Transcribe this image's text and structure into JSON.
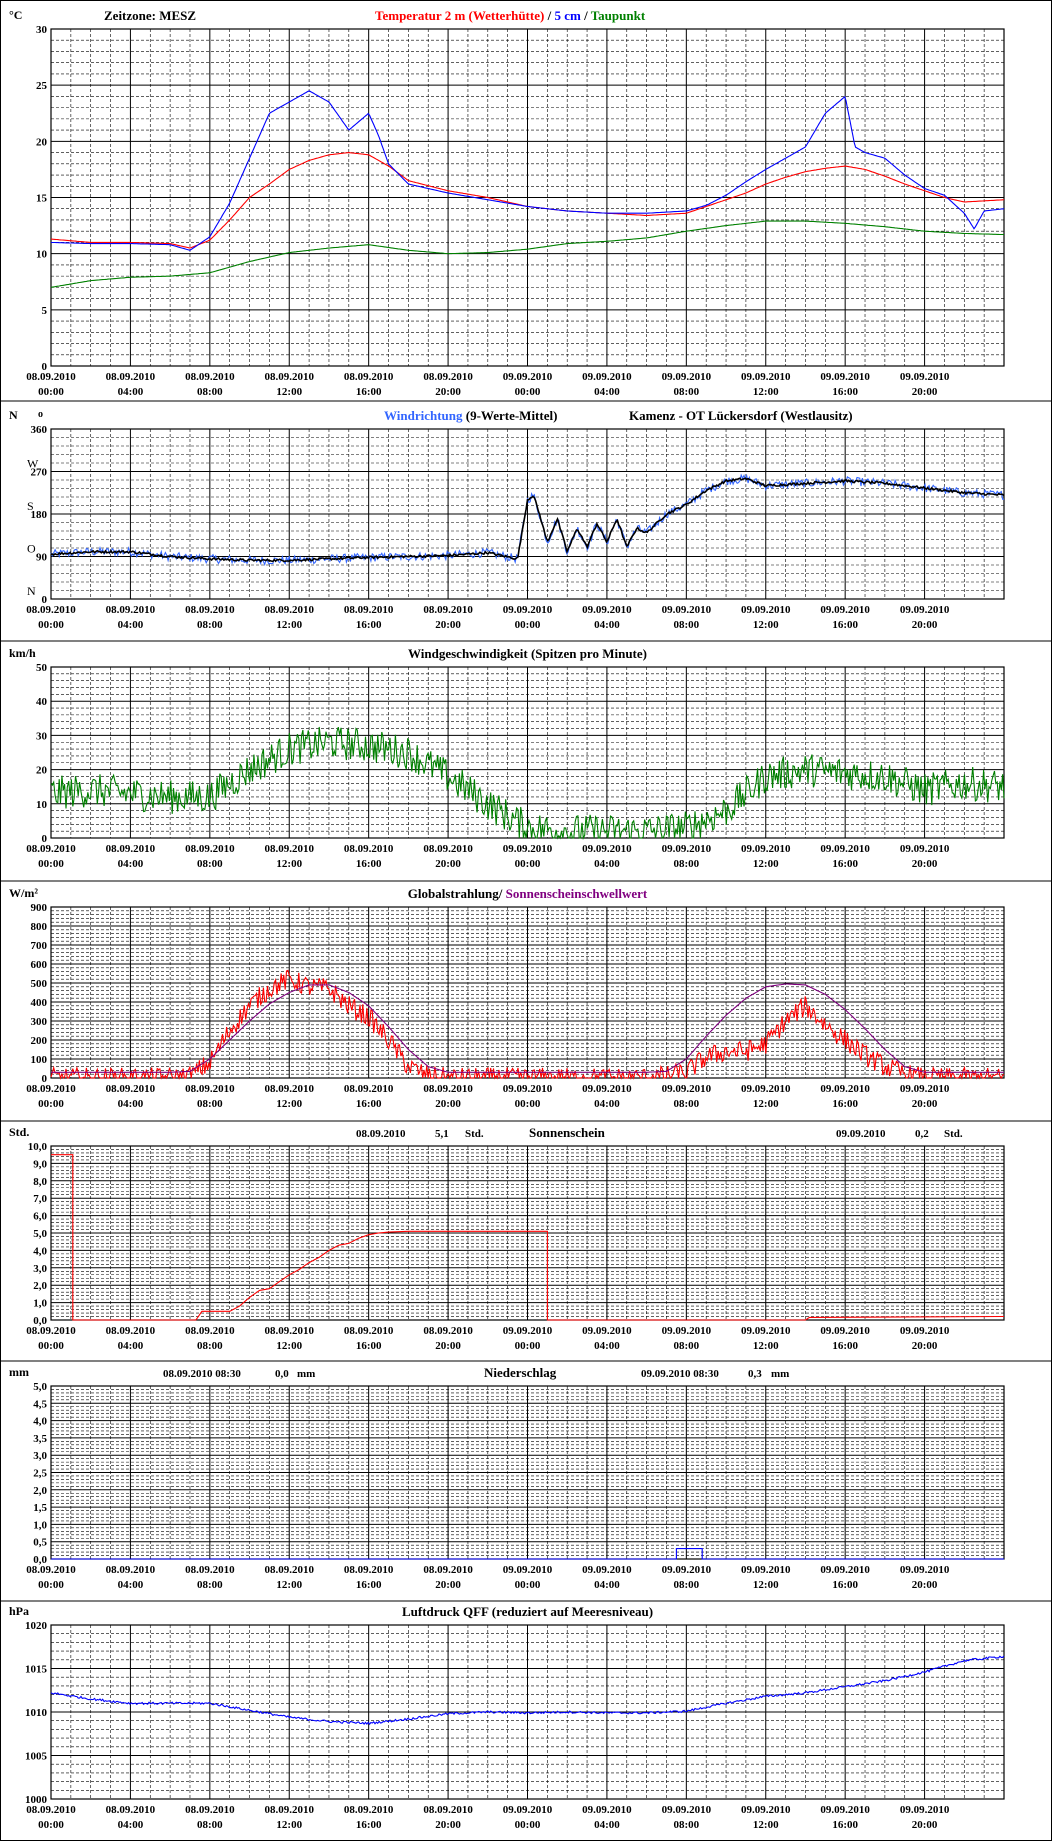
{
  "time_axis": {
    "labels": [
      [
        "08.09.2010",
        "00:00"
      ],
      [
        "08.09.2010",
        "04:00"
      ],
      [
        "08.09.2010",
        "08:00"
      ],
      [
        "08.09.2010",
        "12:00"
      ],
      [
        "08.09.2010",
        "16:00"
      ],
      [
        "08.09.2010",
        "20:00"
      ],
      [
        "09.09.2010",
        "00:00"
      ],
      [
        "09.09.2010",
        "04:00"
      ],
      [
        "09.09.2010",
        "08:00"
      ],
      [
        "09.09.2010",
        "12:00"
      ],
      [
        "09.09.2010",
        "16:00"
      ],
      [
        "09.09.2010",
        "20:00"
      ]
    ],
    "total_hours": 48
  },
  "colors": {
    "red": "#ff0000",
    "blue": "#0000ff",
    "green": "#008000",
    "purple": "#800080",
    "lightblue": "#3366ff",
    "black": "#000000"
  },
  "chart_data": [
    {
      "id": "temperature",
      "type": "line",
      "unit_label": "°C",
      "texts": [
        {
          "text": "Zeitzone: MESZ",
          "color": "#000000"
        },
        {
          "text": "Temperatur 2 m (Wetterhütte)",
          "color": "#ff0000"
        },
        {
          "text": "  /  ",
          "color": "#000000"
        },
        {
          "text": "5 cm",
          "color": "#0000ff"
        },
        {
          "text": " / ",
          "color": "#000000"
        },
        {
          "text": "Taupunkt",
          "color": "#008000"
        }
      ],
      "ylim": [
        0,
        30
      ],
      "yticks": [
        0,
        5,
        10,
        15,
        20,
        25,
        30
      ],
      "series": [
        {
          "color": "#ff0000",
          "x": [
            0,
            2,
            4,
            6,
            7,
            8,
            9,
            10,
            11,
            12,
            13,
            14,
            15,
            16,
            17,
            18,
            20,
            22,
            24,
            26,
            28,
            30,
            32,
            33,
            34,
            35,
            36,
            37,
            38,
            39,
            40,
            41,
            42,
            43,
            44,
            45,
            46,
            47,
            48
          ],
          "y": [
            11.3,
            11.0,
            11.0,
            10.9,
            10.5,
            11.2,
            13.0,
            15.0,
            16.2,
            17.5,
            18.3,
            18.8,
            19.0,
            18.8,
            17.8,
            16.5,
            15.6,
            15.0,
            14.2,
            13.8,
            13.6,
            13.4,
            13.6,
            14.2,
            14.8,
            15.4,
            16.2,
            16.8,
            17.3,
            17.6,
            17.8,
            17.5,
            16.9,
            16.2,
            15.6,
            15.0,
            14.6,
            14.7,
            14.8
          ]
        },
        {
          "color": "#0000ff",
          "x": [
            0,
            2,
            4,
            6,
            7,
            8,
            9,
            10,
            11,
            12,
            13,
            14,
            15,
            16,
            16.5,
            17,
            18,
            20,
            22,
            24,
            26,
            28,
            30,
            32,
            33,
            34,
            35,
            36,
            37,
            38,
            39,
            40,
            40.5,
            41,
            42,
            43,
            44,
            45,
            46,
            46.5,
            47,
            48
          ],
          "y": [
            11.0,
            10.9,
            10.9,
            10.8,
            10.3,
            11.5,
            14.5,
            18.5,
            22.5,
            23.5,
            24.5,
            23.5,
            21.0,
            22.5,
            20.5,
            18.0,
            16.2,
            15.4,
            14.8,
            14.2,
            13.8,
            13.6,
            13.6,
            13.8,
            14.3,
            15.2,
            16.4,
            17.5,
            18.5,
            19.5,
            22.5,
            24.0,
            19.5,
            19.0,
            18.5,
            17.0,
            15.8,
            15.2,
            13.6,
            12.2,
            13.8,
            14.0
          ]
        },
        {
          "color": "#008000",
          "x": [
            0,
            2,
            4,
            6,
            8,
            10,
            12,
            14,
            16,
            18,
            20,
            22,
            24,
            26,
            28,
            30,
            32,
            34,
            36,
            38,
            40,
            42,
            44,
            46,
            48
          ],
          "y": [
            7.0,
            7.6,
            7.9,
            8.0,
            8.3,
            9.3,
            10.1,
            10.5,
            10.8,
            10.3,
            10.0,
            10.1,
            10.4,
            10.9,
            11.1,
            11.4,
            12.0,
            12.5,
            12.9,
            12.9,
            12.7,
            12.4,
            12.0,
            11.8,
            11.7
          ]
        }
      ]
    },
    {
      "id": "wind_direction",
      "type": "line",
      "unit_label": "N",
      "unit_suffix": "o",
      "texts": [
        {
          "text": "Windrichtung",
          "color": "#3366ff"
        },
        {
          "text": " (9-Werte-Mittel)",
          "color": "#000000"
        },
        {
          "text": "Kamenz - OT Lückersdorf (Westlausitz)",
          "color": "#000000"
        }
      ],
      "ylim": [
        0,
        360
      ],
      "yticks": [
        0,
        90,
        180,
        270,
        360
      ],
      "compass": [
        {
          "value": 0,
          "label": "N"
        },
        {
          "value": 90,
          "label": "O"
        },
        {
          "value": 180,
          "label": "S"
        },
        {
          "value": 270,
          "label": "W"
        }
      ],
      "series": [
        {
          "color": "#3366ff",
          "noise": 18,
          "x": [
            0,
            2,
            4,
            6,
            8,
            10,
            12,
            14,
            16,
            18,
            20,
            22,
            23.5,
            24,
            24.3,
            24.6,
            25,
            25.5,
            26,
            26.5,
            27,
            27.5,
            28,
            28.5,
            29,
            29.5,
            30,
            31,
            32,
            33,
            34,
            35,
            36,
            38,
            40,
            42,
            44,
            46,
            48
          ],
          "y": [
            95,
            100,
            100,
            90,
            85,
            82,
            82,
            85,
            88,
            90,
            92,
            98,
            85,
            210,
            220,
            180,
            120,
            170,
            100,
            150,
            110,
            160,
            120,
            170,
            110,
            150,
            140,
            180,
            200,
            230,
            250,
            255,
            240,
            245,
            250,
            245,
            235,
            225,
            220
          ]
        },
        {
          "color": "#000000",
          "noise": 5,
          "x": [
            0,
            2,
            4,
            6,
            8,
            10,
            12,
            14,
            16,
            18,
            20,
            22,
            23.5,
            24,
            24.3,
            24.6,
            25,
            25.5,
            26,
            26.5,
            27,
            27.5,
            28,
            28.5,
            29,
            29.5,
            30,
            31,
            32,
            33,
            34,
            35,
            36,
            38,
            40,
            42,
            44,
            46,
            48
          ],
          "y": [
            95,
            100,
            100,
            90,
            85,
            82,
            82,
            85,
            88,
            90,
            92,
            98,
            85,
            210,
            220,
            180,
            120,
            170,
            100,
            150,
            110,
            160,
            120,
            170,
            110,
            150,
            140,
            180,
            200,
            230,
            250,
            255,
            240,
            245,
            250,
            245,
            235,
            225,
            220
          ]
        }
      ]
    },
    {
      "id": "wind_speed",
      "type": "line",
      "unit_label": "km/h",
      "texts": [
        {
          "text": "Windgeschwindigkeit (Spitzen pro Minute)",
          "color": "#000000"
        }
      ],
      "ylim": [
        0,
        50
      ],
      "yticks": [
        0,
        10,
        20,
        30,
        40,
        50
      ],
      "series": [
        {
          "color": "#008000",
          "noise": 10,
          "x": [
            0,
            2,
            4,
            6,
            8,
            10,
            12,
            14,
            16,
            18,
            20,
            22,
            24,
            26,
            28,
            30,
            32,
            34,
            36,
            38,
            40,
            42,
            44,
            46,
            48
          ],
          "y": [
            13,
            14,
            13,
            12,
            12,
            20,
            26,
            28,
            27,
            25,
            18,
            10,
            3,
            2,
            2,
            2,
            3,
            8,
            18,
            20,
            19,
            18,
            14,
            16,
            15
          ]
        }
      ]
    },
    {
      "id": "global_radiation",
      "type": "line",
      "unit_label": "W/m²",
      "texts": [
        {
          "text": "Globalstrahlung/ ",
          "color": "#000000"
        },
        {
          "text": "Sonnenscheinschwellwert",
          "color": "#800080"
        }
      ],
      "ylim": [
        0,
        900
      ],
      "yticks": [
        0,
        100,
        200,
        300,
        400,
        500,
        600,
        700,
        800,
        900
      ],
      "series": [
        {
          "color": "#ff0000",
          "noise": 110,
          "x": [
            0,
            6,
            7,
            8,
            9,
            10,
            11,
            12,
            13,
            14,
            15,
            16,
            17,
            18,
            19,
            20,
            24,
            30,
            31,
            32,
            33,
            34,
            35,
            36,
            37,
            38,
            39,
            40,
            41,
            42,
            43,
            44,
            48
          ],
          "y": [
            0,
            0,
            10,
            80,
            250,
            380,
            470,
            520,
            480,
            470,
            380,
            320,
            200,
            60,
            10,
            0,
            0,
            0,
            10,
            30,
            110,
            140,
            140,
            180,
            300,
            380,
            280,
            200,
            120,
            60,
            20,
            0,
            0
          ]
        },
        {
          "color": "#800080",
          "x": [
            0,
            6,
            7,
            8,
            9,
            10,
            11,
            12,
            13,
            14,
            15,
            16,
            17,
            18,
            19,
            20,
            30,
            31,
            32,
            33,
            34,
            35,
            36,
            37,
            38,
            39,
            40,
            41,
            42,
            43,
            44,
            48
          ],
          "y": [
            30,
            30,
            35,
            100,
            200,
            300,
            390,
            450,
            490,
            490,
            450,
            380,
            270,
            150,
            60,
            30,
            30,
            35,
            100,
            220,
            330,
            420,
            480,
            495,
            490,
            440,
            360,
            260,
            150,
            60,
            30,
            30
          ]
        }
      ]
    },
    {
      "id": "sunshine",
      "type": "line",
      "unit_label": "Std.",
      "texts": [
        {
          "text": "08.09.2010",
          "color": "#000000"
        },
        {
          "text": "5,1",
          "color": "#000000"
        },
        {
          "text": "Std.",
          "color": "#000000"
        },
        {
          "text": "Sonnenschein",
          "color": "#000000"
        },
        {
          "text": "09.09.2010",
          "color": "#000000"
        },
        {
          "text": "0,2",
          "color": "#000000"
        },
        {
          "text": "Std.",
          "color": "#000000"
        }
      ],
      "ylim": [
        0,
        10
      ],
      "yticks": [
        0,
        1,
        2,
        3,
        4,
        5,
        6,
        7,
        8,
        9,
        10
      ],
      "ytick_labels": [
        "0,0",
        "1,0",
        "2,0",
        "3,0",
        "4,0",
        "5,0",
        "6,0",
        "7,0",
        "8,0",
        "9,0",
        "10,0"
      ],
      "series": [
        {
          "color": "#ff0000",
          "step": true,
          "x": [
            0,
            1.1,
            1.1,
            7.3,
            7.6,
            9.0,
            9.5,
            10.0,
            10.5,
            11.0,
            11.5,
            12.0,
            12.5,
            13.0,
            13.5,
            14.0,
            14.5,
            15.0,
            15.5,
            16.0,
            16.5,
            17.0,
            18.0,
            20.0,
            22.0,
            24.0,
            25.0,
            25.0,
            38.0,
            38.2,
            48.0
          ],
          "y": [
            9.5,
            9.5,
            0.0,
            0.0,
            0.5,
            0.5,
            0.8,
            1.3,
            1.7,
            1.8,
            2.2,
            2.6,
            2.9,
            3.3,
            3.6,
            4.0,
            4.3,
            4.4,
            4.7,
            4.9,
            5.0,
            5.05,
            5.1,
            5.1,
            5.1,
            5.1,
            5.1,
            0.0,
            0.0,
            0.15,
            0.2
          ]
        }
      ]
    },
    {
      "id": "precipitation",
      "type": "line",
      "unit_label": "mm",
      "texts": [
        {
          "text": "08.09.2010 08:30",
          "color": "#000000"
        },
        {
          "text": "0,0",
          "color": "#000000"
        },
        {
          "text": "mm",
          "color": "#000000"
        },
        {
          "text": "Niederschlag",
          "color": "#000000"
        },
        {
          "text": "09.09.2010 08:30",
          "color": "#000000"
        },
        {
          "text": "0,3",
          "color": "#000000"
        },
        {
          "text": "mm",
          "color": "#000000"
        }
      ],
      "ylim": [
        0,
        5
      ],
      "yticks": [
        0,
        0.5,
        1,
        1.5,
        2,
        2.5,
        3,
        3.5,
        4,
        4.5,
        5
      ],
      "ytick_labels": [
        "0,0",
        "0,5",
        "1,0",
        "1,5",
        "2,0",
        "2,5",
        "3,0",
        "3,5",
        "4,0",
        "4,5",
        "5,0"
      ],
      "series": [
        {
          "color": "#0000ff",
          "step": true,
          "x": [
            0,
            31.5,
            31.5,
            32.8,
            32.8,
            48
          ],
          "y": [
            0,
            0,
            0.3,
            0.3,
            0,
            0
          ]
        }
      ]
    },
    {
      "id": "pressure",
      "type": "line",
      "unit_label": "hPa",
      "texts": [
        {
          "text": "Luftdruck QFF (reduziert auf Meeresniveau)",
          "color": "#000000"
        }
      ],
      "ylim": [
        1000,
        1020
      ],
      "yticks": [
        1000,
        1005,
        1010,
        1015,
        1020
      ],
      "series": [
        {
          "color": "#0000ff",
          "noise": 0.25,
          "x": [
            0,
            2,
            4,
            6,
            8,
            10,
            12,
            14,
            16,
            18,
            20,
            22,
            24,
            26,
            28,
            30,
            32,
            34,
            36,
            38,
            40,
            42,
            44,
            46,
            48
          ],
          "y": [
            1012.2,
            1011.5,
            1011.0,
            1011.0,
            1011.0,
            1010.2,
            1009.4,
            1008.9,
            1008.7,
            1009.2,
            1009.8,
            1010.0,
            1009.9,
            1010.0,
            1009.9,
            1009.9,
            1010.1,
            1011.0,
            1011.8,
            1012.2,
            1012.9,
            1013.6,
            1014.6,
            1015.9,
            1016.4
          ]
        }
      ]
    }
  ]
}
